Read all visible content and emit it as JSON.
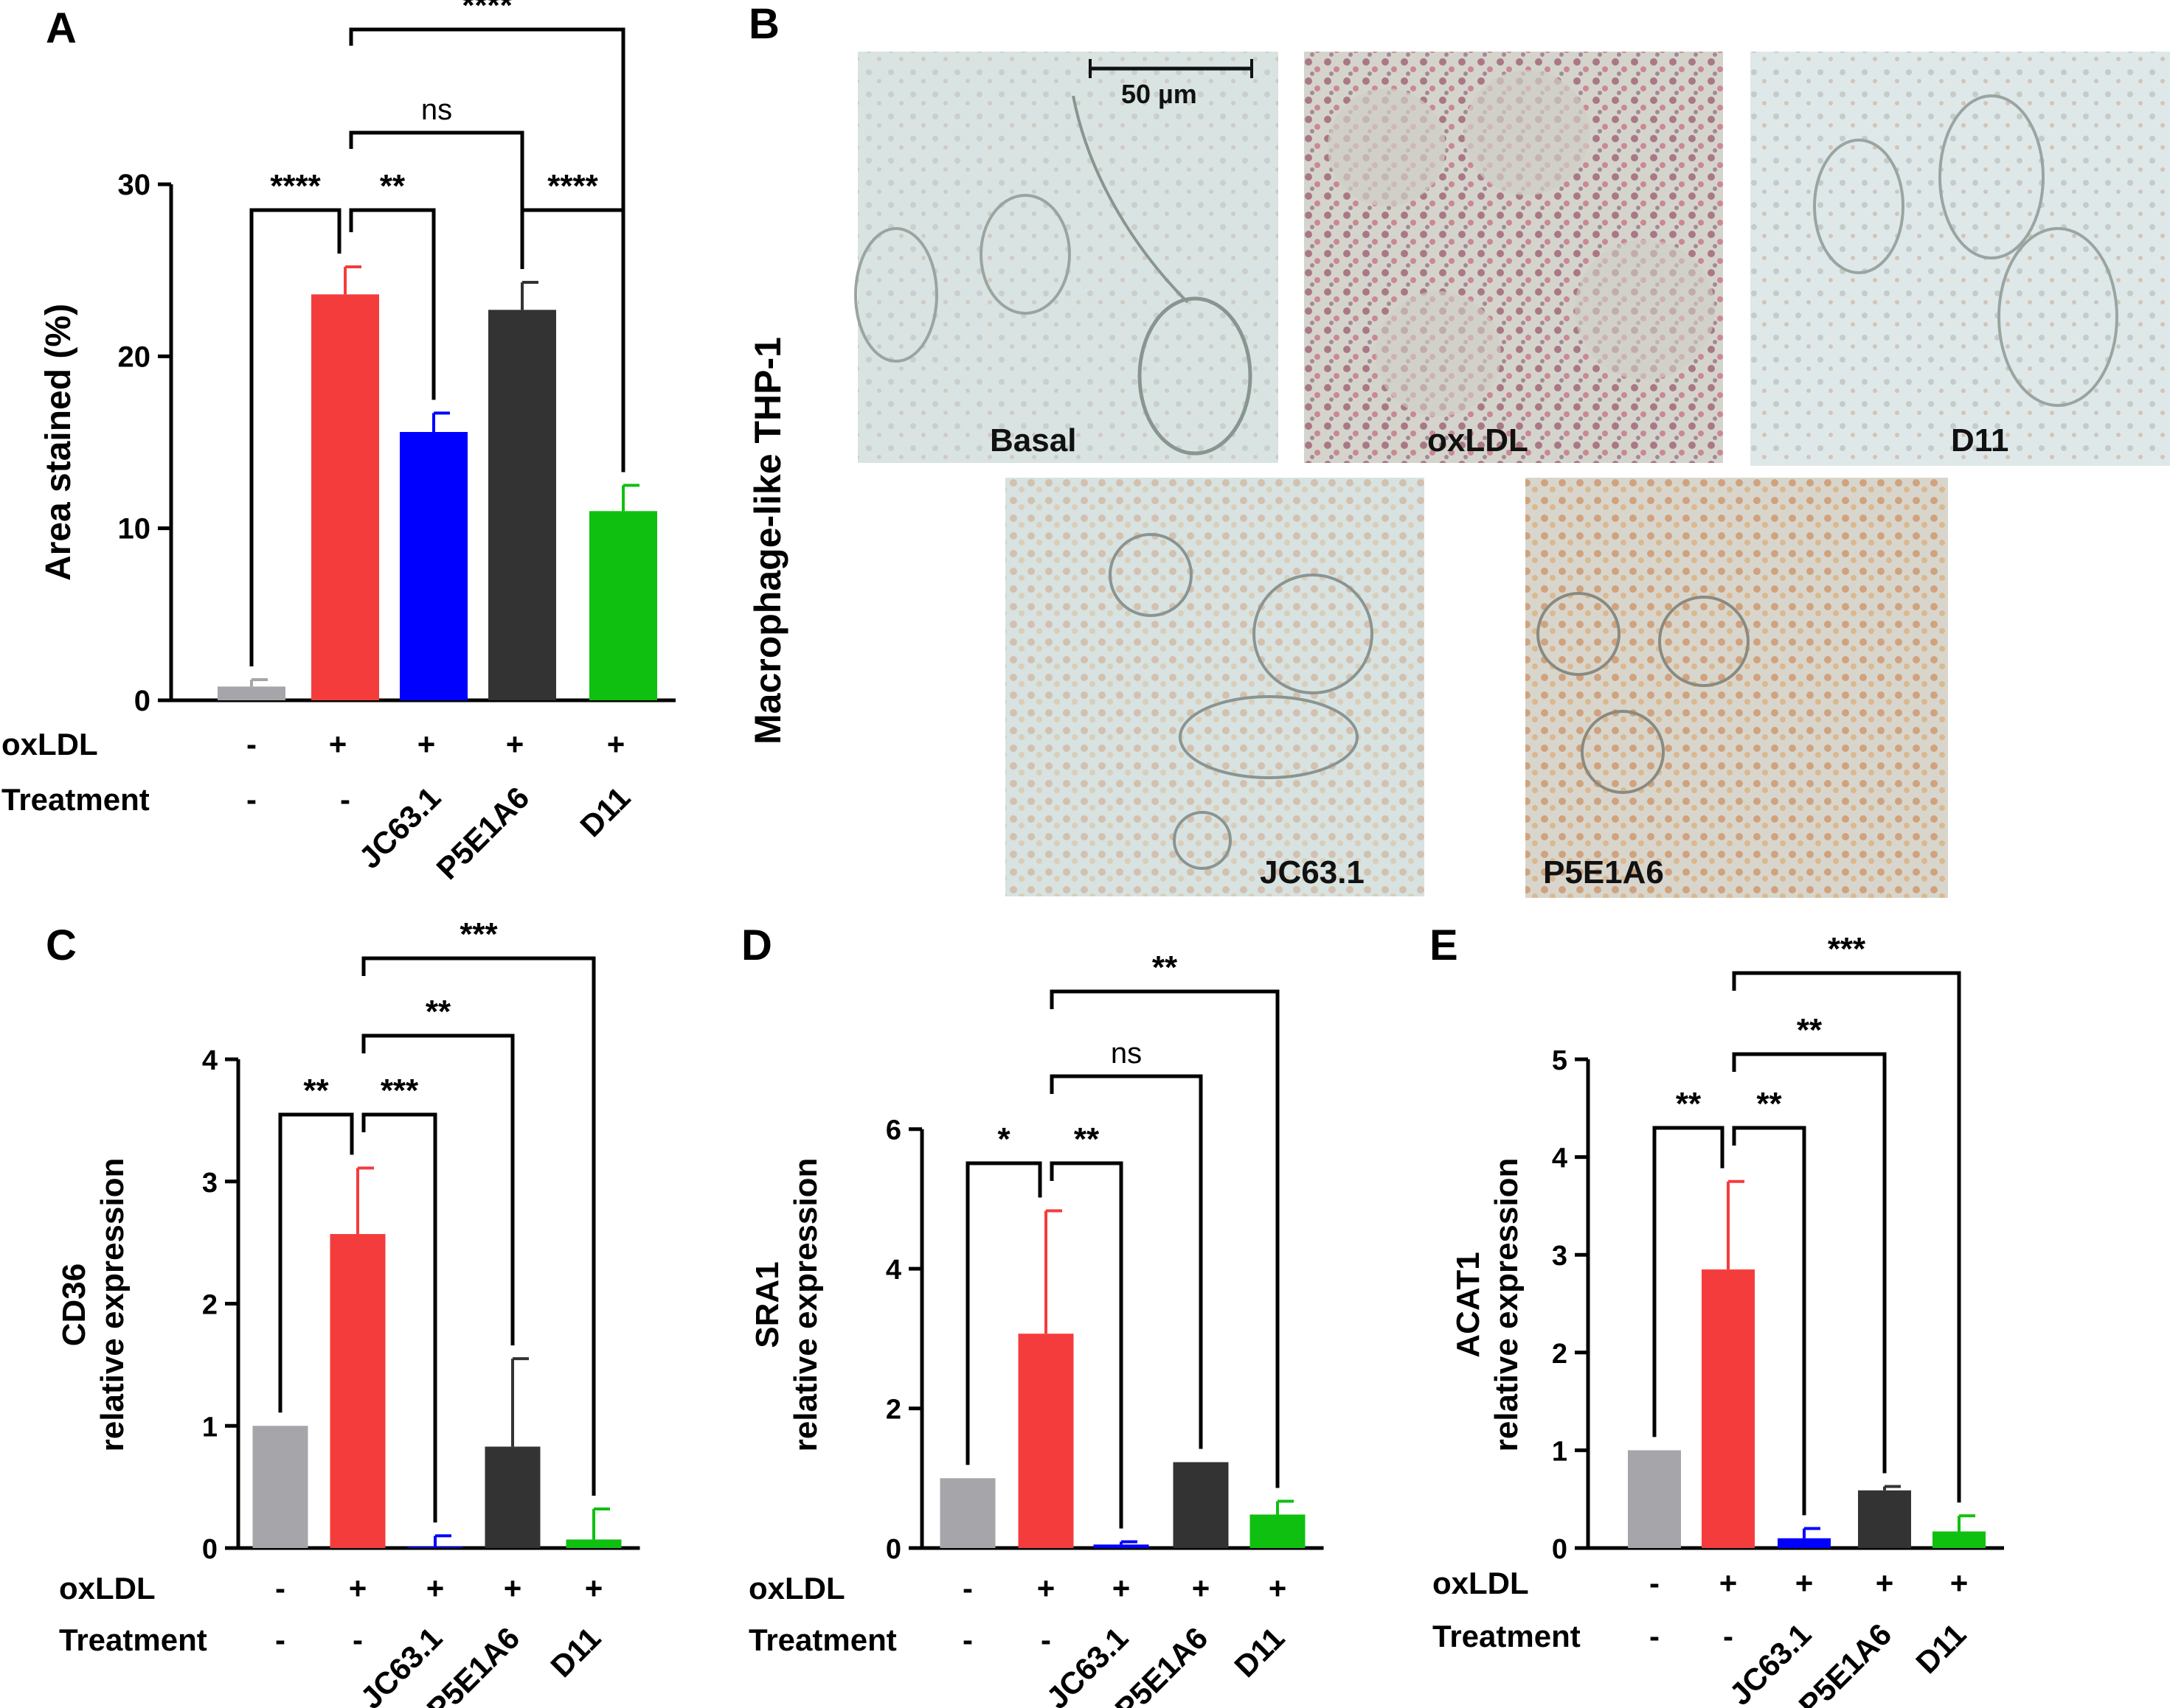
{
  "colors": {
    "gray": "#a5a5aa",
    "red": "#f43c3c",
    "blue": "#0000ff",
    "black": "#333333",
    "green": "#10c010"
  },
  "rows": {
    "oxldl": "oxLDL",
    "treatment": "Treatment"
  },
  "labels": {
    "oxldl": [
      "-",
      "+",
      "+",
      "+",
      "+"
    ],
    "treatment": [
      "-",
      "-",
      "JC63.1",
      "P5E1A6",
      "D11"
    ]
  },
  "panel_b": {
    "letter": "B",
    "side_label": "Macrophage-like THP-1",
    "scale_bar": "50 µm",
    "images": [
      "Basal",
      "oxLDL",
      "D11",
      "JC63.1",
      "P5E1A6"
    ]
  },
  "chart_data": [
    {
      "panel": "A",
      "type": "bar",
      "categories": [
        "1",
        "2",
        "3",
        "4",
        "5"
      ],
      "values": [
        0.8,
        23.6,
        15.6,
        22.7,
        11.0
      ],
      "errors": [
        0.4,
        1.6,
        1.1,
        1.6,
        1.5
      ],
      "ylabel": "Area stained (%)",
      "ylim": [
        0,
        30
      ],
      "yticks": [
        0,
        10,
        20,
        30
      ],
      "significance": [
        {
          "a": 0,
          "b": 1,
          "label": "****"
        },
        {
          "a": 1,
          "b": 2,
          "label": "**"
        },
        {
          "a": 3,
          "b": 4,
          "label": "****"
        },
        {
          "a": 1,
          "b": 3,
          "label": "ns"
        },
        {
          "a": 1,
          "b": 4,
          "label": "****"
        }
      ]
    },
    {
      "panel": "C",
      "type": "bar",
      "categories": [
        "1",
        "2",
        "3",
        "4",
        "5"
      ],
      "values": [
        1.0,
        2.57,
        0.01,
        0.83,
        0.07
      ],
      "errors": [
        0,
        0.54,
        0.09,
        0.72,
        0.25
      ],
      "ylabel": [
        "CD36",
        "relative expression"
      ],
      "ylim": [
        0,
        4
      ],
      "yticks": [
        0,
        1,
        2,
        3,
        4
      ],
      "significance": [
        {
          "a": 0,
          "b": 1,
          "label": "**"
        },
        {
          "a": 1,
          "b": 2,
          "label": "***"
        },
        {
          "a": 1,
          "b": 3,
          "label": "**"
        },
        {
          "a": 1,
          "b": 4,
          "label": "***"
        }
      ]
    },
    {
      "panel": "D",
      "type": "bar",
      "categories": [
        "1",
        "2",
        "3",
        "4",
        "5"
      ],
      "values": [
        1.0,
        3.07,
        0.05,
        1.23,
        0.48
      ],
      "errors": [
        0,
        1.76,
        0.04,
        0,
        0.19
      ],
      "ylabel": [
        "SRA1",
        "relative expression"
      ],
      "ylim": [
        0,
        7
      ],
      "yticks": [
        0,
        2,
        4,
        6
      ],
      "significance": [
        {
          "a": 0,
          "b": 1,
          "label": "*"
        },
        {
          "a": 1,
          "b": 2,
          "label": "**"
        },
        {
          "a": 1,
          "b": 3,
          "label": "ns"
        },
        {
          "a": 1,
          "b": 4,
          "label": "**"
        }
      ]
    },
    {
      "panel": "E",
      "type": "bar",
      "categories": [
        "1",
        "2",
        "3",
        "4",
        "5"
      ],
      "values": [
        1.0,
        2.85,
        0.1,
        0.59,
        0.17
      ],
      "errors": [
        0,
        0.9,
        0.1,
        0.04,
        0.16
      ],
      "ylabel": [
        "ACAT1",
        "relative expression"
      ],
      "ylim": [
        0,
        5
      ],
      "yticks": [
        0,
        1,
        2,
        3,
        4,
        5
      ],
      "significance": [
        {
          "a": 0,
          "b": 1,
          "label": "**"
        },
        {
          "a": 1,
          "b": 2,
          "label": "**"
        },
        {
          "a": 1,
          "b": 3,
          "label": "**"
        },
        {
          "a": 1,
          "b": 4,
          "label": "***"
        }
      ]
    }
  ]
}
